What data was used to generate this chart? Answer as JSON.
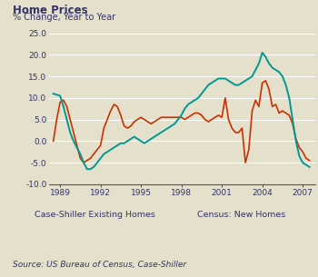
{
  "title": "Home Prices",
  "subtitle": "% Change, Year to Year",
  "source": "Source: US Bureau of Census, Case-Shiller",
  "background_color": "#e5e0cc",
  "plot_bg_color": "#e5e0cc",
  "teal_color": "#009990",
  "orange_color": "#c83200",
  "text_color": "#333366",
  "ylim": [
    -10.0,
    25.0
  ],
  "yticks": [
    -10.0,
    -5.0,
    0.0,
    5.0,
    10.0,
    15.0,
    20.0,
    25.0
  ],
  "xtick_years": [
    1989,
    1992,
    1995,
    1998,
    2001,
    2004,
    2007
  ],
  "xlim": [
    1988.2,
    2007.9
  ],
  "legend_teal": "Case-Shiller Existing Homes",
  "legend_orange": "Census: New Homes",
  "case_shiller_x": [
    1988.5,
    1989.0,
    1989.25,
    1989.5,
    1989.75,
    1990.0,
    1990.25,
    1990.5,
    1990.75,
    1991.0,
    1991.25,
    1991.5,
    1991.75,
    1992.0,
    1992.25,
    1992.5,
    1992.75,
    1993.0,
    1993.25,
    1993.5,
    1993.75,
    1994.0,
    1994.25,
    1994.5,
    1994.75,
    1995.0,
    1995.25,
    1995.5,
    1995.75,
    1996.0,
    1996.25,
    1996.5,
    1996.75,
    1997.0,
    1997.25,
    1997.5,
    1997.75,
    1998.0,
    1998.25,
    1998.5,
    1998.75,
    1999.0,
    1999.25,
    1999.5,
    1999.75,
    2000.0,
    2000.25,
    2000.5,
    2000.75,
    2001.0,
    2001.25,
    2001.5,
    2001.75,
    2002.0,
    2002.25,
    2002.5,
    2002.75,
    2003.0,
    2003.25,
    2003.5,
    2003.75,
    2004.0,
    2004.25,
    2004.5,
    2004.75,
    2005.0,
    2005.25,
    2005.5,
    2005.75,
    2006.0,
    2006.25,
    2006.5,
    2006.75,
    2007.0,
    2007.25,
    2007.5
  ],
  "case_shiller_y": [
    11.0,
    10.5,
    8.0,
    5.0,
    2.0,
    0.0,
    -1.5,
    -3.0,
    -5.0,
    -6.5,
    -6.5,
    -6.0,
    -5.0,
    -4.0,
    -3.0,
    -2.5,
    -2.0,
    -1.5,
    -1.0,
    -0.5,
    -0.5,
    0.0,
    0.5,
    1.0,
    0.5,
    0.0,
    -0.5,
    0.0,
    0.5,
    1.0,
    1.5,
    2.0,
    2.5,
    3.0,
    3.5,
    4.0,
    5.0,
    6.0,
    7.5,
    8.5,
    9.0,
    9.5,
    10.0,
    11.0,
    12.0,
    13.0,
    13.5,
    14.0,
    14.5,
    14.5,
    14.5,
    14.0,
    13.5,
    13.0,
    13.0,
    13.5,
    14.0,
    14.5,
    15.0,
    16.5,
    18.0,
    20.5,
    19.5,
    18.0,
    17.0,
    16.5,
    16.0,
    15.0,
    13.0,
    10.0,
    5.0,
    0.0,
    -3.5,
    -5.0,
    -5.5,
    -6.0
  ],
  "census_x": [
    1988.5,
    1988.75,
    1989.0,
    1989.25,
    1989.5,
    1989.75,
    1990.0,
    1990.25,
    1990.5,
    1990.75,
    1991.0,
    1991.25,
    1991.5,
    1991.75,
    1992.0,
    1992.25,
    1992.5,
    1992.75,
    1993.0,
    1993.25,
    1993.5,
    1993.75,
    1994.0,
    1994.25,
    1994.5,
    1994.75,
    1995.0,
    1995.25,
    1995.5,
    1995.75,
    1996.0,
    1996.25,
    1996.5,
    1996.75,
    1997.0,
    1997.25,
    1997.5,
    1997.75,
    1998.0,
    1998.25,
    1998.5,
    1998.75,
    1999.0,
    1999.25,
    1999.5,
    1999.75,
    2000.0,
    2000.25,
    2000.5,
    2000.75,
    2001.0,
    2001.25,
    2001.5,
    2001.75,
    2002.0,
    2002.25,
    2002.5,
    2002.75,
    2003.0,
    2003.25,
    2003.5,
    2003.75,
    2004.0,
    2004.25,
    2004.5,
    2004.75,
    2005.0,
    2005.25,
    2005.5,
    2005.75,
    2006.0,
    2006.25,
    2006.5,
    2006.75,
    2007.0,
    2007.25,
    2007.5
  ],
  "census_y": [
    0.0,
    5.0,
    9.0,
    9.5,
    8.0,
    5.0,
    2.0,
    -1.0,
    -4.0,
    -5.0,
    -4.5,
    -4.0,
    -3.0,
    -2.0,
    -1.0,
    3.0,
    5.0,
    7.0,
    8.5,
    8.0,
    6.0,
    3.5,
    3.0,
    3.5,
    4.5,
    5.0,
    5.5,
    5.0,
    4.5,
    4.0,
    4.5,
    5.0,
    5.5,
    5.5,
    5.5,
    5.5,
    5.5,
    5.5,
    5.5,
    5.0,
    5.5,
    6.0,
    6.5,
    6.5,
    6.0,
    5.0,
    4.5,
    5.0,
    5.5,
    6.0,
    5.5,
    10.0,
    5.0,
    3.0,
    2.0,
    2.0,
    3.0,
    -5.0,
    -2.0,
    7.0,
    9.5,
    8.0,
    13.5,
    14.0,
    12.0,
    8.0,
    8.5,
    6.5,
    7.0,
    6.5,
    6.0,
    4.0,
    0.5,
    -1.5,
    -2.5,
    -4.0,
    -4.5
  ]
}
